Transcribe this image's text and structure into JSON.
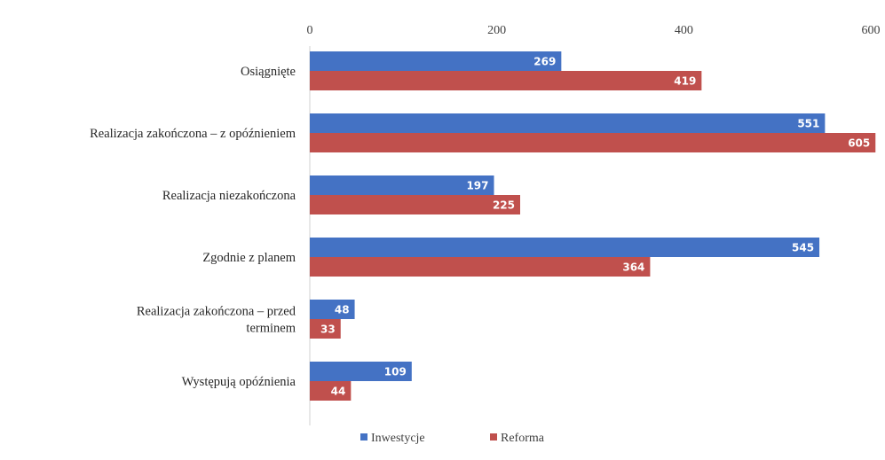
{
  "chart_data": {
    "type": "bar",
    "orientation": "horizontal",
    "categories": [
      "Osiągnięte",
      "Realizacja zakończona – z opóźnieniem",
      "Realizacja niezakończona",
      "Zgodnie z planem",
      "Realizacja zakończona – przed terminem",
      "Występują opóźnienia"
    ],
    "category_lines": [
      [
        "Osiągnięte"
      ],
      [
        "Realizacja zakończona – z opóźnieniem"
      ],
      [
        "Realizacja niezakończona"
      ],
      [
        "Zgodnie z planem"
      ],
      [
        "Realizacja zakończona – przed",
        "terminem"
      ],
      [
        "Występują opóźnienia"
      ]
    ],
    "series": [
      {
        "name": "Inwestycje",
        "color": "#4472C4",
        "values": [
          269,
          551,
          197,
          545,
          48,
          109
        ]
      },
      {
        "name": "Reforma",
        "color": "#C0504D",
        "values": [
          419,
          605,
          225,
          364,
          33,
          44
        ]
      }
    ],
    "xlim": [
      0,
      600
    ],
    "x_ticks": [
      0,
      200,
      400,
      600
    ],
    "x_axis_position": "top",
    "grid": false,
    "data_labels": true,
    "legend": {
      "position": "bottom",
      "items": [
        "Inwestycje",
        "Reforma"
      ]
    },
    "title": "",
    "xlabel": "",
    "ylabel": ""
  }
}
